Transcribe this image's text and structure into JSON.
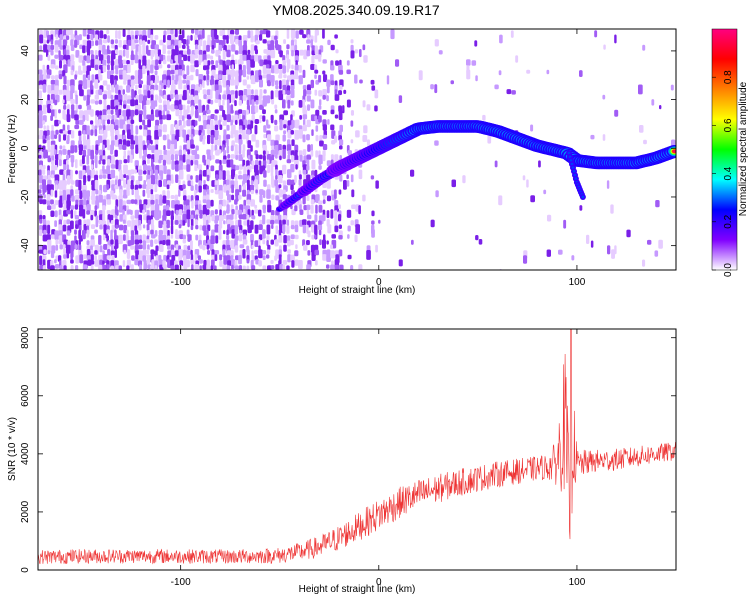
{
  "title": "YM08.2025.340.09.19.R17",
  "chart_data": [
    {
      "type": "heatmap",
      "xlabel": "Height of straight line (km)",
      "ylabel": "Frequency (Hz)",
      "xlim": [
        -172,
        150
      ],
      "ylim": [
        -50,
        49
      ],
      "xticks": [
        -100,
        0,
        100
      ],
      "yticks": [
        -40,
        -20,
        0,
        20,
        40
      ],
      "colorbar": {
        "label": "Normalized spectral amplitude",
        "range": [
          0.0,
          1.0
        ],
        "ticks": [
          0.0,
          0.2,
          0.4,
          0.6,
          0.8
        ],
        "tick_labels": [
          "0.0",
          "0.2",
          "0.4",
          "0.6",
          "0.8"
        ],
        "colormap": [
          "#ffffff",
          "#8000ff",
          "#0000ff",
          "#00ffff",
          "#00ff00",
          "#ffff00",
          "#ff8000",
          "#ff0000",
          "#ff0080"
        ]
      },
      "ridge": {
        "label": "dominant frequency track",
        "x": [
          -50,
          -40,
          -30,
          -20,
          -10,
          0,
          10,
          20,
          30,
          40,
          50,
          60,
          70,
          80,
          90,
          95,
          100,
          110,
          120,
          130,
          140,
          150
        ],
        "y": [
          -25,
          -19,
          -13,
          -8,
          -4,
          0,
          4,
          8,
          9,
          9,
          9,
          7,
          4,
          1,
          -1,
          -2,
          -5,
          -6,
          -6,
          -6,
          -4,
          -1
        ]
      },
      "branch": {
        "x": [
          96,
          98,
          100,
          103
        ],
        "y": [
          -2,
          -8,
          -14,
          -20
        ]
      },
      "noise_region_x": [
        -172,
        -20
      ]
    },
    {
      "type": "line",
      "xlabel": "Height of straight line (km)",
      "ylabel": "SNR (10 * v/v)",
      "xlim": [
        -172,
        150
      ],
      "ylim": [
        0,
        8300
      ],
      "xticks": [
        -100,
        0,
        100
      ],
      "yticks": [
        0,
        2000,
        4000,
        6000,
        8000
      ],
      "color": "#ee3333",
      "series": [
        {
          "x": [
            -172,
            -150,
            -125,
            -100,
            -75,
            -60,
            -50,
            -40,
            -30,
            -20,
            -10,
            0,
            10,
            20,
            30,
            40,
            50,
            60,
            70,
            80,
            85,
            90,
            92,
            94,
            96,
            98,
            100,
            105,
            110,
            120,
            130,
            140,
            150
          ],
          "values": [
            450,
            470,
            480,
            470,
            460,
            480,
            500,
            620,
            800,
            1100,
            1500,
            1900,
            2300,
            2600,
            2800,
            3000,
            3150,
            3300,
            3400,
            3500,
            3550,
            3700,
            4500,
            5200,
            2000,
            4500,
            3600,
            3700,
            3750,
            3800,
            3900,
            4000,
            4100
          ],
          "spread": [
            250,
            250,
            250,
            250,
            250,
            260,
            280,
            320,
            380,
            450,
            500,
            550,
            550,
            520,
            500,
            480,
            460,
            450,
            440,
            430,
            450,
            800,
            1800,
            2500,
            2500,
            1800,
            600,
            420,
            400,
            380,
            360,
            340,
            320
          ]
        }
      ],
      "peak": {
        "x": 97,
        "y": 8300
      }
    }
  ]
}
